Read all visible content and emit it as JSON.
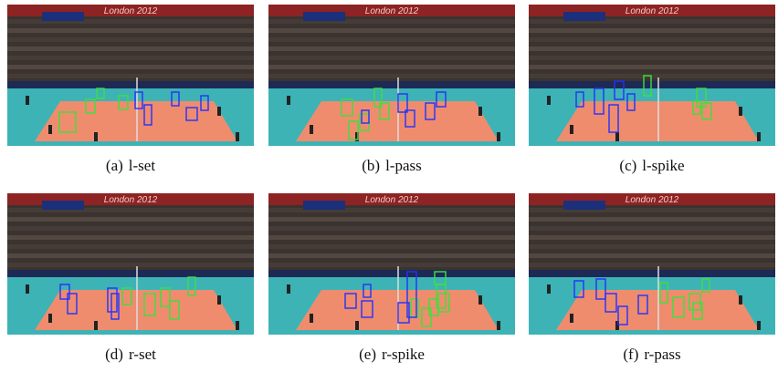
{
  "figure": {
    "scene_text": "London 2012",
    "panels": [
      {
        "label": "(a)",
        "caption": "l-set"
      },
      {
        "label": "(b)",
        "caption": "l-pass"
      },
      {
        "label": "(c)",
        "caption": "l-spike"
      },
      {
        "label": "(d)",
        "caption": "r-set"
      },
      {
        "label": "(e)",
        "caption": "r-spike"
      },
      {
        "label": "(f)",
        "caption": "r-pass"
      }
    ]
  }
}
